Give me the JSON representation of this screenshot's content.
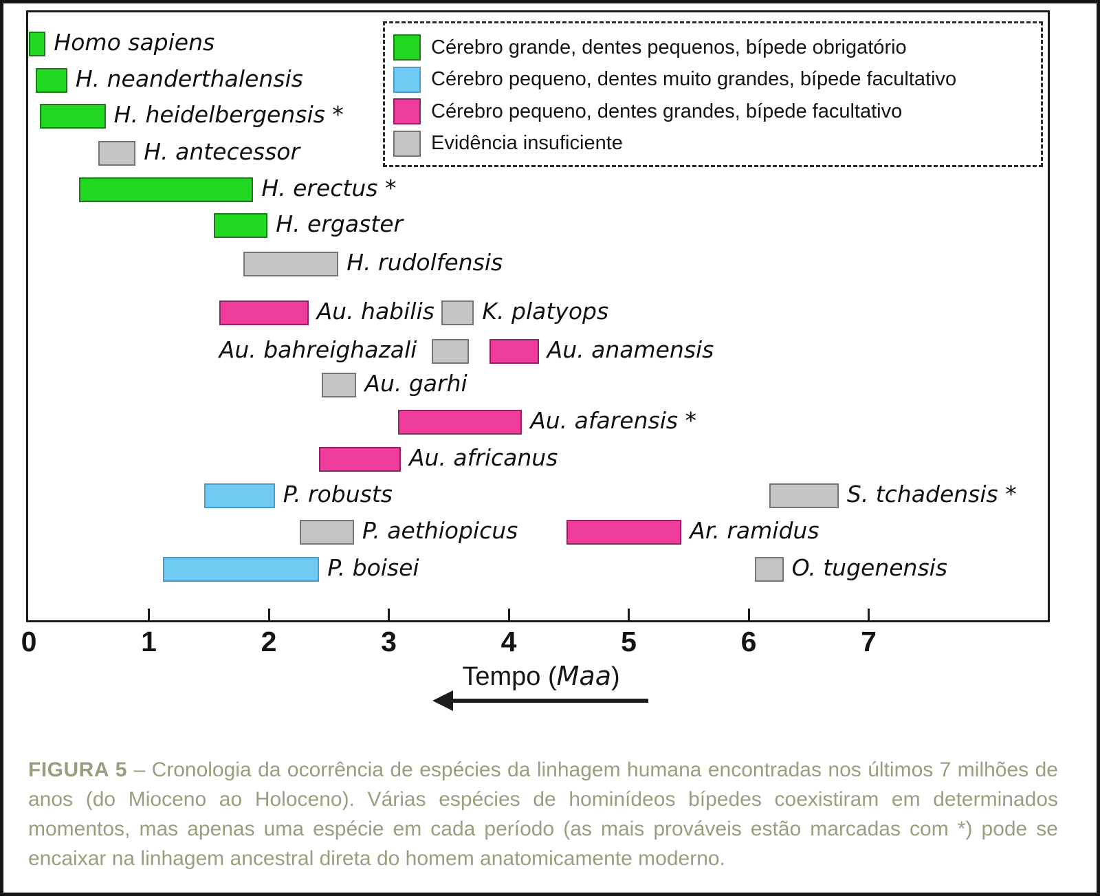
{
  "chart_data": {
    "type": "bar",
    "subtype": "horizontal-timeline-gantt",
    "title": "",
    "xlabel": "Tempo (Maa)",
    "xlabel_parts": {
      "prefix": "Tempo (",
      "italic": "Maa",
      "suffix": ")"
    },
    "x_direction": "arrow points left (toward present, 0 Maa)",
    "xlim": [
      0,
      8.5
    ],
    "x_ticks": [
      0,
      1,
      2,
      3,
      4,
      5,
      6,
      7
    ],
    "grid": false,
    "legend_position": "top-right, dashed box",
    "legend": [
      {
        "category": "green",
        "label": "Cérebro grande, dentes pequenos, bípede obrigatório"
      },
      {
        "category": "blue",
        "label": "Cérebro pequeno, dentes muito grandes, bípede facultativo"
      },
      {
        "category": "pink",
        "label": "Cérebro pequeno, dentes grandes, bípede facultativo"
      },
      {
        "category": "gray",
        "label": "Evidência insuficiente"
      }
    ],
    "series": [
      {
        "name": "Homo sapiens",
        "category": "green",
        "start_maa": 0.0,
        "end_maa": 0.14,
        "row": 1,
        "label_side": "right"
      },
      {
        "name": "H. neanderthalensis",
        "category": "green",
        "start_maa": 0.06,
        "end_maa": 0.32,
        "row": 2,
        "label_side": "right"
      },
      {
        "name": "H. heidelbergensis *",
        "category": "green",
        "start_maa": 0.09,
        "end_maa": 0.64,
        "row": 3,
        "label_side": "right"
      },
      {
        "name": "H. antecessor",
        "category": "gray",
        "start_maa": 0.58,
        "end_maa": 0.89,
        "row": 4,
        "label_side": "right"
      },
      {
        "name": "H. erectus *",
        "category": "green",
        "start_maa": 0.42,
        "end_maa": 1.87,
        "row": 5,
        "label_side": "right"
      },
      {
        "name": "H. ergaster",
        "category": "green",
        "start_maa": 1.54,
        "end_maa": 1.99,
        "row": 6,
        "label_side": "right"
      },
      {
        "name": "H. rudolfensis",
        "category": "gray",
        "start_maa": 1.79,
        "end_maa": 2.58,
        "row": 7,
        "label_side": "right"
      },
      {
        "name": "Au. habilis",
        "category": "pink",
        "start_maa": 1.59,
        "end_maa": 2.33,
        "row": 8,
        "label_side": "right"
      },
      {
        "name": "K. platyops",
        "category": "gray",
        "start_maa": 3.44,
        "end_maa": 3.71,
        "row": 8,
        "label_side": "right"
      },
      {
        "name": "Au. bahreighazali",
        "category": "gray",
        "start_maa": 3.36,
        "end_maa": 3.67,
        "row": 9,
        "label_side": "left"
      },
      {
        "name": "Au. anamensis",
        "category": "pink",
        "start_maa": 3.84,
        "end_maa": 4.25,
        "row": 9,
        "label_side": "right"
      },
      {
        "name": "Au. garhi",
        "category": "gray",
        "start_maa": 2.44,
        "end_maa": 2.73,
        "row": 10,
        "label_side": "right"
      },
      {
        "name": "Au. afarensis *",
        "category": "pink",
        "start_maa": 3.08,
        "end_maa": 4.11,
        "row": 11,
        "label_side": "right"
      },
      {
        "name": "Au. africanus",
        "category": "pink",
        "start_maa": 2.42,
        "end_maa": 3.1,
        "row": 12,
        "label_side": "right"
      },
      {
        "name": "P. robusts",
        "category": "blue",
        "start_maa": 1.46,
        "end_maa": 2.05,
        "row": 13,
        "label_side": "right"
      },
      {
        "name": "S. tchadensis *",
        "category": "gray",
        "start_maa": 6.17,
        "end_maa": 6.75,
        "row": 13,
        "label_side": "right"
      },
      {
        "name": "P. aethiopicus",
        "category": "gray",
        "start_maa": 2.26,
        "end_maa": 2.71,
        "row": 14,
        "label_side": "right"
      },
      {
        "name": "Ar. ramidus",
        "category": "pink",
        "start_maa": 4.48,
        "end_maa": 5.44,
        "row": 14,
        "label_side": "right"
      },
      {
        "name": "P. boisei",
        "category": "blue",
        "start_maa": 1.12,
        "end_maa": 2.42,
        "row": 15,
        "label_side": "right"
      },
      {
        "name": "O. tugenensis",
        "category": "gray",
        "start_maa": 6.05,
        "end_maa": 6.29,
        "row": 15,
        "label_side": "right"
      }
    ]
  },
  "colors": {
    "green": {
      "fill": "#22d822",
      "border": "#1d7a1d"
    },
    "blue": {
      "fill": "#70cbf4",
      "border": "#4a9dc9"
    },
    "pink": {
      "fill": "#ee3d9a",
      "border": "#8f2560"
    },
    "gray": {
      "fill": "#c4c4c4",
      "border": "#757575"
    },
    "axis": "#1a1a1a",
    "caption_text": "#9c9c80"
  },
  "caption": {
    "tag": "FIGURA 5",
    "separator": "–",
    "body": "Cronologia da ocorrência de espécies da linhagem humana encontradas nos últimos 7 milhões de anos (do Mioceno ao Holoceno). Várias espécies de hominídeos bípedes coexistiram em determinados momentos, mas apenas uma espécie em cada período (as mais prováveis estão marcadas com *) pode se encaixar na linhagem ancestral direta do homem anatomicamente moderno."
  }
}
